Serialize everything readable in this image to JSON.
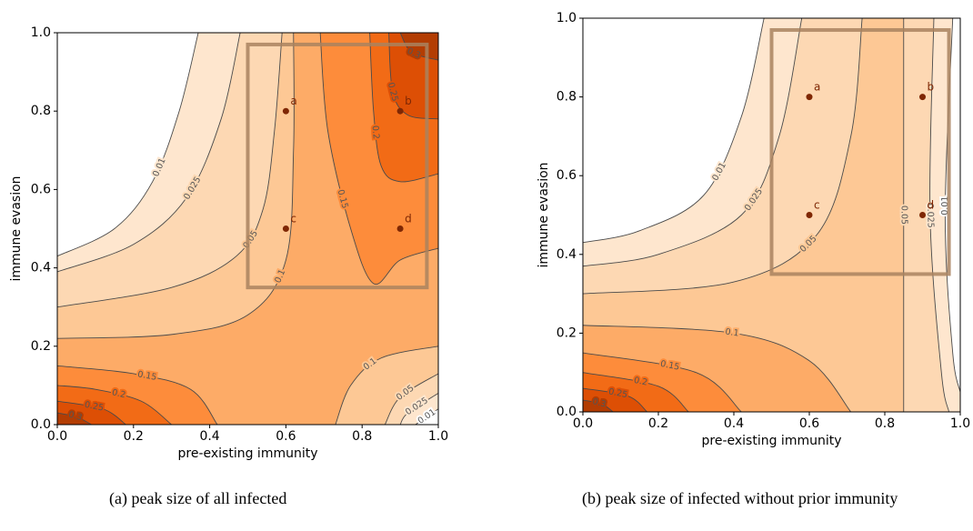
{
  "chart_data": [
    {
      "type": "contour",
      "xlabel": "pre-existing immunity",
      "ylabel": "immune evasion",
      "caption": "(a) peak size of all infected",
      "xlim": [
        0,
        1
      ],
      "ylim": [
        0,
        1
      ],
      "xticks": [
        {
          "value": 0,
          "label": "0.0"
        },
        0.2,
        0.4,
        0.6,
        0.8,
        {
          "value": 1,
          "label": "1.0"
        }
      ],
      "yticks": [
        {
          "value": 0,
          "label": "0.0"
        },
        0.2,
        0.4,
        0.6,
        0.8,
        {
          "value": 1,
          "label": "1.0"
        }
      ],
      "background": "#ffffff",
      "line_color": "#4a4a4a",
      "contours": [
        {
          "level": 0.01,
          "color": "#fee6ce",
          "points": [
            [
              0.37,
              1
            ],
            [
              0.32,
              0.8
            ],
            [
              0.25,
              0.62
            ],
            [
              0.15,
              0.5
            ],
            [
              0,
              0.43
            ]
          ]
        },
        {
          "level": 0.025,
          "color": "#fdd8b3",
          "points": [
            [
              0.48,
              1
            ],
            [
              0.43,
              0.78
            ],
            [
              0.34,
              0.58
            ],
            [
              0.2,
              0.46
            ],
            [
              0,
              0.39
            ]
          ]
        },
        {
          "level": 0.05,
          "color": "#fdc895",
          "points": [
            [
              0.59,
              1
            ],
            [
              0.57,
              0.75
            ],
            [
              0.54,
              0.55
            ],
            [
              0.47,
              0.43
            ],
            [
              0.3,
              0.35
            ],
            [
              0,
              0.3
            ]
          ]
        },
        {
          "level": 0.1,
          "color": "#fdab67",
          "points": [
            [
              0.62,
              1
            ],
            [
              0.62,
              0.7
            ],
            [
              0.6,
              0.42
            ],
            [
              0.5,
              0.28
            ],
            [
              0.3,
              0.23
            ],
            [
              0,
              0.22
            ]
          ]
        },
        {
          "level": 0.15,
          "color": "#fd8c3b",
          "points": [
            [
              0.42,
              0
            ],
            [
              0.35,
              0.09
            ],
            [
              0.2,
              0.13
            ],
            [
              0,
              0.15
            ]
          ]
        },
        {
          "level": 0.15,
          "color": "#fd8c3b",
          "points": [
            [
              0.69,
              1
            ],
            [
              0.71,
              0.75
            ],
            [
              0.77,
              0.5
            ],
            [
              0.83,
              0.36
            ],
            [
              0.9,
              0.42
            ],
            [
              1,
              0.45
            ]
          ]
        },
        {
          "level": 0.2,
          "color": "#f26b16",
          "points": [
            [
              0.3,
              0
            ],
            [
              0.22,
              0.06
            ],
            [
              0.1,
              0.09
            ],
            [
              0,
              0.1
            ]
          ]
        },
        {
          "level": 0.2,
          "color": "#f26b16",
          "points": [
            [
              0.82,
              1
            ],
            [
              0.83,
              0.8
            ],
            [
              0.85,
              0.66
            ],
            [
              0.9,
              0.62
            ],
            [
              1,
              0.64
            ]
          ]
        },
        {
          "level": 0.25,
          "color": "#dd4f05",
          "points": [
            [
              0.18,
              0
            ],
            [
              0.12,
              0.04
            ],
            [
              0,
              0.06
            ]
          ]
        },
        {
          "level": 0.25,
          "color": "#dd4f05",
          "points": [
            [
              0.87,
              1
            ],
            [
              0.88,
              0.85
            ],
            [
              0.92,
              0.79
            ],
            [
              1,
              0.78
            ]
          ]
        },
        {
          "level": 0.3,
          "color": "#b33d03",
          "points": [
            [
              0.09,
              0
            ],
            [
              0.05,
              0.02
            ],
            [
              0,
              0.03
            ]
          ]
        },
        {
          "level": 0.3,
          "color": "#b33d03",
          "points": [
            [
              0.9,
              1
            ],
            [
              0.93,
              0.95
            ],
            [
              1,
              0.93
            ]
          ]
        },
        {
          "level": 0.1,
          "color": "#fdc895",
          "points": [
            [
              1,
              0.2
            ],
            [
              0.85,
              0.17
            ],
            [
              0.77,
              0.1
            ],
            [
              0.73,
              0
            ]
          ]
        },
        {
          "level": 0.05,
          "color": "#fdd8b3",
          "points": [
            [
              1,
              0.13
            ],
            [
              0.9,
              0.07
            ],
            [
              0.86,
              0
            ]
          ]
        },
        {
          "level": 0.025,
          "color": "#fee6ce",
          "points": [
            [
              1,
              0.08
            ],
            [
              0.92,
              0.03
            ],
            [
              0.9,
              0
            ]
          ]
        },
        {
          "level": 0.01,
          "color": "#ffffff",
          "points": [
            [
              1,
              0.04
            ],
            [
              0.94,
              0
            ]
          ]
        }
      ],
      "markers": {
        "labels": [
          "a",
          "b",
          "c",
          "d"
        ],
        "x": [
          0.6,
          0.9,
          0.6,
          0.9
        ],
        "y": [
          0.8,
          0.8,
          0.5,
          0.5
        ],
        "color": "#7f2704"
      },
      "box": {
        "x": [
          0.5,
          0.97
        ],
        "y": [
          0.35,
          0.97
        ],
        "color": "#a9825f"
      }
    },
    {
      "type": "contour",
      "xlabel": "pre-existing immunity",
      "ylabel": "immune evasion",
      "caption": "(b) peak size of infected without prior immunity",
      "xlim": [
        0,
        1
      ],
      "ylim": [
        0,
        1
      ],
      "xticks": [
        {
          "value": 0,
          "label": "0.0"
        },
        0.2,
        0.4,
        0.6,
        0.8,
        {
          "value": 1,
          "label": "1.0"
        }
      ],
      "yticks": [
        {
          "value": 0,
          "label": "0.0"
        },
        0.2,
        0.4,
        0.6,
        0.8,
        {
          "value": 1,
          "label": "1.0"
        }
      ],
      "background": "#ffffff",
      "line_color": "#4a4a4a",
      "contours": [
        {
          "level": 0.01,
          "color": "#fee6ce",
          "points": [
            [
              0.48,
              1
            ],
            [
              0.42,
              0.75
            ],
            [
              0.32,
              0.55
            ],
            [
              0.15,
              0.46
            ],
            [
              0,
              0.43
            ]
          ]
        },
        {
          "level": 0.025,
          "color": "#fdd8b3",
          "points": [
            [
              0.58,
              1
            ],
            [
              0.52,
              0.7
            ],
            [
              0.42,
              0.5
            ],
            [
              0.2,
              0.4
            ],
            [
              0,
              0.37
            ]
          ]
        },
        {
          "level": 0.05,
          "color": "#fdc895",
          "points": [
            [
              0.74,
              1
            ],
            [
              0.71,
              0.7
            ],
            [
              0.62,
              0.45
            ],
            [
              0.4,
              0.33
            ],
            [
              0,
              0.3
            ]
          ]
        },
        {
          "level": 0.1,
          "color": "#fdab67",
          "points": [
            [
              0.71,
              0
            ],
            [
              0.6,
              0.13
            ],
            [
              0.4,
              0.2
            ],
            [
              0,
              0.22
            ]
          ]
        },
        {
          "level": 0.15,
          "color": "#fd8c3b",
          "points": [
            [
              0.42,
              0
            ],
            [
              0.3,
              0.1
            ],
            [
              0,
              0.15
            ]
          ]
        },
        {
          "level": 0.2,
          "color": "#f26b16",
          "points": [
            [
              0.28,
              0
            ],
            [
              0.2,
              0.065
            ],
            [
              0,
              0.1
            ]
          ]
        },
        {
          "level": 0.25,
          "color": "#dd4f05",
          "points": [
            [
              0.17,
              0
            ],
            [
              0.12,
              0.04
            ],
            [
              0,
              0.06
            ]
          ]
        },
        {
          "level": 0.3,
          "color": "#b33d03",
          "points": [
            [
              0.08,
              0
            ],
            [
              0.05,
              0.02
            ],
            [
              0,
              0.03
            ]
          ]
        },
        {
          "level": 0.05,
          "color": "#fdd8b3",
          "points": [
            [
              0.85,
              1
            ],
            [
              0.85,
              0
            ]
          ]
        },
        {
          "level": 0.025,
          "color": "#fee6ce",
          "points": [
            [
              0.93,
              1
            ],
            [
              0.92,
              0.5
            ],
            [
              0.95,
              0.1
            ],
            [
              0.97,
              0
            ]
          ]
        },
        {
          "level": 0.01,
          "color": "#ffffff",
          "points": [
            [
              0.98,
              1
            ],
            [
              0.96,
              0.5
            ],
            [
              0.98,
              0.15
            ],
            [
              1,
              0.05
            ]
          ]
        }
      ],
      "markers": {
        "labels": [
          "a",
          "b",
          "c",
          "d"
        ],
        "x": [
          0.6,
          0.9,
          0.6,
          0.9
        ],
        "y": [
          0.8,
          0.8,
          0.5,
          0.5
        ],
        "color": "#7f2704"
      },
      "box": {
        "x": [
          0.5,
          0.97
        ],
        "y": [
          0.35,
          0.97
        ],
        "color": "#a9825f"
      }
    }
  ]
}
